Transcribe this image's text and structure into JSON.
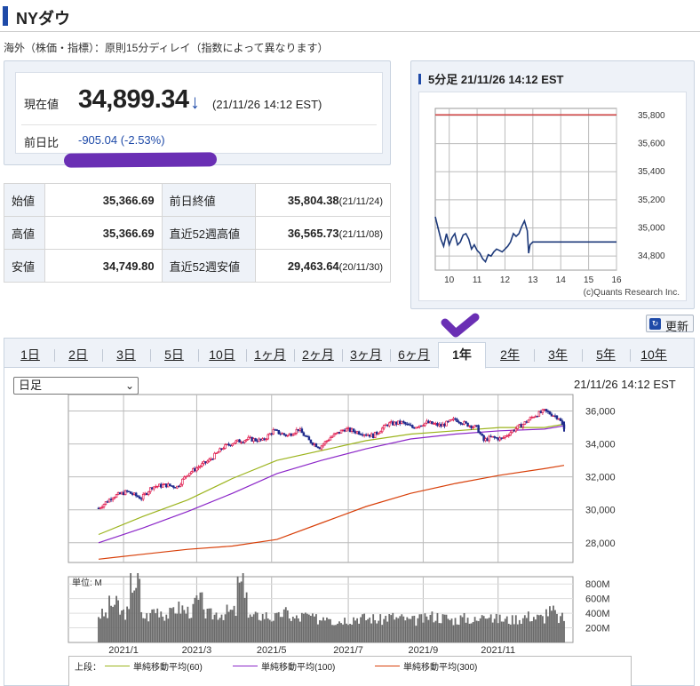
{
  "header": {
    "title": "NYダウ",
    "subtitle": "海外（株価・指標）：原則15分ディレイ（指数によって異なります）"
  },
  "quote": {
    "current_label": "現在値",
    "current_value": "34,899.34",
    "arrow": "↓",
    "current_time": "(21/11/26 14:12 EST)",
    "change_label": "前日比",
    "change_value": "-905.04 (-2.53%)"
  },
  "stats": [
    {
      "k1": "始値",
      "v1": "35,366.69",
      "k2": "前日終値",
      "v2": "35,804.38",
      "d2": "(21/11/24)"
    },
    {
      "k1": "高値",
      "v1": "35,366.69",
      "k2": "直近52週高値",
      "v2": "36,565.73",
      "d2": "(21/11/08)"
    },
    {
      "k1": "安値",
      "v1": "34,749.80",
      "k2": "直近52週安値",
      "v2": "29,463.64",
      "d2": "(20/11/30)"
    }
  ],
  "intraday": {
    "title": "5分足 21/11/26 14:12 EST",
    "credit": "(c)Quants Research Inc."
  },
  "update_button": {
    "label": "更新",
    "icon": "refresh-icon"
  },
  "tabs": [
    "1日",
    "2日",
    "3日",
    "5日",
    "10日",
    "1ヶ月",
    "2ヶ月",
    "3ヶ月",
    "6ヶ月",
    "1年",
    "2年",
    "3年",
    "5年",
    "10年"
  ],
  "active_tab": 9,
  "period_select": {
    "value": "日足"
  },
  "main_time": "21/11/26 14:12 EST",
  "legend": {
    "prefix": "上段：",
    "items": [
      {
        "label": "単純移動平均(60)",
        "color": "#9cb41e"
      },
      {
        "label": "単純移動平均(100)",
        "color": "#8b26c8"
      },
      {
        "label": "単純移動平均(300)",
        "color": "#d8400a"
      }
    ]
  },
  "colors": {
    "accent": "#1e4aa8",
    "up": "#e0164a",
    "down": "#1e2a8c",
    "prev_close": "#d04040",
    "annotation": "#6a2fb4"
  },
  "chart_data": [
    {
      "type": "line",
      "title": "5分足 21/11/26 14:12 EST",
      "x_ticks": [
        "10",
        "11",
        "12",
        "13",
        "14",
        "15",
        "16"
      ],
      "xlim": [
        9.5,
        16
      ],
      "y_ticks": [
        "34,800",
        "35,000",
        "35,200",
        "35,400",
        "35,600",
        "35,800"
      ],
      "ylim": [
        34700,
        35850
      ],
      "reference_line": {
        "value": 35804,
        "color": "#d04040"
      },
      "series": [
        {
          "x": [
            9.5,
            9.6,
            9.7,
            9.8,
            9.9,
            10.0,
            10.1,
            10.2,
            10.3,
            10.4,
            10.5,
            10.6,
            10.7,
            10.8,
            10.9,
            11.0,
            11.1,
            11.2,
            11.3,
            11.4,
            11.5,
            11.6,
            11.7,
            11.8,
            11.9,
            12.0,
            12.1,
            12.2,
            12.3,
            12.4,
            12.5,
            12.6,
            12.7,
            12.8,
            12.85,
            12.9,
            13.0,
            16.0
          ],
          "y": [
            35080,
            35000,
            34920,
            34870,
            34960,
            34880,
            34930,
            34960,
            34880,
            34900,
            34950,
            34960,
            34920,
            34850,
            34880,
            34840,
            34820,
            34780,
            34760,
            34810,
            34800,
            34830,
            34850,
            34840,
            34830,
            34850,
            34870,
            34900,
            34960,
            34940,
            34960,
            35010,
            35050,
            34980,
            34820,
            34880,
            34900,
            34900
          ]
        }
      ]
    },
    {
      "type": "candlestick",
      "x_ticks": [
        "2021/1",
        "2021/3",
        "2021/5",
        "2021/7",
        "2021/9",
        "2021/11"
      ],
      "y_ticks": [
        "28,000",
        "30,000",
        "32,000",
        "34,000",
        "36,000"
      ],
      "ylim": [
        26800,
        37000
      ],
      "price_path": [
        [
          0,
          30100
        ],
        [
          8,
          30800
        ],
        [
          16,
          31100
        ],
        [
          24,
          30700
        ],
        [
          30,
          31400
        ],
        [
          38,
          31500
        ],
        [
          44,
          31400
        ],
        [
          50,
          32200
        ],
        [
          56,
          32600
        ],
        [
          62,
          33000
        ],
        [
          70,
          33800
        ],
        [
          76,
          34100
        ],
        [
          84,
          34300
        ],
        [
          92,
          34200
        ],
        [
          98,
          34800
        ],
        [
          106,
          34500
        ],
        [
          112,
          34900
        ],
        [
          118,
          34200
        ],
        [
          124,
          33800
        ],
        [
          130,
          34400
        ],
        [
          138,
          34900
        ],
        [
          146,
          34700
        ],
        [
          154,
          34500
        ],
        [
          162,
          35200
        ],
        [
          170,
          35300
        ],
        [
          176,
          35000
        ],
        [
          184,
          35300
        ],
        [
          192,
          35100
        ],
        [
          200,
          35500
        ],
        [
          206,
          35200
        ],
        [
          212,
          35000
        ],
        [
          216,
          34200
        ],
        [
          220,
          34400
        ],
        [
          226,
          34300
        ],
        [
          232,
          34800
        ],
        [
          238,
          35200
        ],
        [
          244,
          35700
        ],
        [
          250,
          36000
        ],
        [
          254,
          35800
        ],
        [
          258,
          35600
        ],
        [
          261,
          34899
        ]
      ],
      "sma_points": [
        0,
        25,
        50,
        75,
        100,
        125,
        150,
        175,
        200,
        225,
        250,
        261
      ],
      "sma": [
        {
          "name": "単純移動平均(60)",
          "values": [
            28500,
            29600,
            30600,
            31900,
            33000,
            33600,
            34200,
            34600,
            34800,
            35000,
            35000,
            35200
          ]
        },
        {
          "name": "単純移動平均(100)",
          "values": [
            28000,
            28900,
            29900,
            31000,
            32200,
            33000,
            33700,
            34300,
            34600,
            34800,
            34900,
            35100
          ]
        },
        {
          "name": "単純移動平均(300)",
          "values": [
            27000,
            27300,
            27600,
            27800,
            28200,
            29200,
            30200,
            31000,
            31600,
            32100,
            32500,
            32700
          ]
        }
      ]
    },
    {
      "type": "bar",
      "unit_label": "単位: M",
      "y_ticks": [
        "200M",
        "400M",
        "600M",
        "800M"
      ],
      "ylim": [
        0,
        900
      ],
      "volume_profile": [
        380,
        520,
        410,
        820,
        360,
        450,
        390,
        470,
        430,
        560,
        380,
        400,
        420,
        780,
        350,
        370,
        340,
        400,
        330,
        360,
        320,
        380,
        300,
        320,
        340,
        330,
        310,
        350,
        330,
        300,
        320,
        360,
        340,
        310,
        330,
        300,
        420,
        320,
        310,
        330,
        360,
        340,
        420,
        330
      ]
    }
  ]
}
